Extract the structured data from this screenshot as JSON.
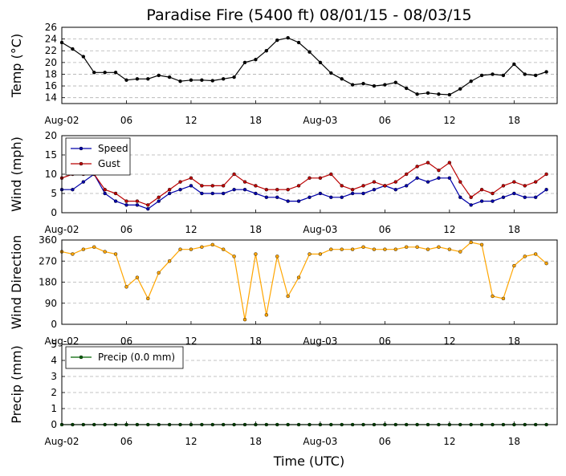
{
  "figure_title": "Paradise Fire (5400 ft) 08/01/15 - 08/03/15",
  "xlabel": "Time (UTC)",
  "x_tick_labels": [
    "Aug-02",
    "06",
    "12",
    "18",
    "Aug-03",
    "06",
    "12",
    "18"
  ],
  "colors": {
    "temp": "#000000",
    "speed": "#0000aa",
    "gust": "#bb0000",
    "direction": "#ffa500",
    "precip": "#006400",
    "grid": "#b0b0b0"
  },
  "chart_data": [
    {
      "type": "line",
      "panel": "temperature",
      "ylabel": "Temp (°C)",
      "ylim": [
        13,
        26
      ],
      "yticks": [
        14,
        16,
        18,
        20,
        22,
        24,
        26
      ],
      "x_hours": [
        0,
        1,
        2,
        3,
        4,
        5,
        6,
        7,
        8,
        9,
        10,
        11,
        12,
        13,
        14,
        15,
        16,
        17,
        18,
        19,
        20,
        21,
        22,
        23,
        24,
        25,
        26,
        27,
        28,
        29,
        30,
        31,
        32,
        33,
        34,
        35,
        36,
        37,
        38,
        39,
        40,
        41,
        42,
        43,
        44,
        45
      ],
      "series": [
        {
          "values": [
            23.4,
            22.3,
            21.0,
            18.3,
            18.3,
            18.3,
            17.0,
            17.2,
            17.2,
            17.8,
            17.5,
            16.8,
            17.0,
            17.0,
            16.9,
            17.2,
            17.5,
            20.0,
            20.5,
            22.0,
            23.8,
            24.2,
            23.4,
            21.8,
            20.0,
            18.2,
            17.2,
            16.2,
            16.4,
            16.0,
            16.2,
            16.6,
            15.6,
            14.6,
            14.8,
            14.6,
            14.5,
            15.5,
            16.8,
            17.8,
            18.0,
            17.8,
            19.7,
            18.0,
            17.8,
            18.4
          ]
        }
      ]
    },
    {
      "type": "line",
      "panel": "wind",
      "ylabel": "Wind (mph)",
      "ylim": [
        0,
        20
      ],
      "yticks": [
        0,
        5,
        10,
        15,
        20
      ],
      "legend_loc": "upper-left",
      "x_hours": [
        0,
        1,
        2,
        3,
        4,
        5,
        6,
        7,
        8,
        9,
        10,
        11,
        12,
        13,
        14,
        15,
        16,
        17,
        18,
        19,
        20,
        21,
        22,
        23,
        24,
        25,
        26,
        27,
        28,
        29,
        30,
        31,
        32,
        33,
        34,
        35,
        36,
        37,
        38,
        39,
        40,
        41,
        42,
        43,
        44,
        45
      ],
      "series": [
        {
          "name": "Speed",
          "values": [
            6,
            6,
            8,
            10,
            5,
            3,
            2,
            2,
            1,
            3,
            5,
            6,
            7,
            5,
            5,
            5,
            6,
            6,
            5,
            4,
            4,
            3,
            3,
            4,
            5,
            4,
            4,
            5,
            5,
            6,
            7,
            6,
            7,
            9,
            8,
            9,
            9,
            4,
            2,
            3,
            3,
            4,
            5,
            4,
            4,
            6
          ]
        },
        {
          "name": "Gust",
          "values": [
            9,
            10,
            10,
            10,
            6,
            5,
            3,
            3,
            2,
            4,
            6,
            8,
            9,
            7,
            7,
            7,
            10,
            8,
            7,
            6,
            6,
            6,
            7,
            9,
            9,
            10,
            7,
            6,
            7,
            8,
            7,
            8,
            10,
            12,
            13,
            11,
            13,
            8,
            4,
            6,
            5,
            7,
            8,
            7,
            8,
            10
          ]
        }
      ]
    },
    {
      "type": "scatter",
      "panel": "direction",
      "ylabel": "Wind Direction",
      "ylim": [
        0,
        360
      ],
      "yticks": [
        0,
        90,
        180,
        270,
        360
      ],
      "x_hours": [
        0,
        1,
        2,
        3,
        4,
        5,
        6,
        7,
        8,
        9,
        10,
        11,
        12,
        13,
        14,
        15,
        16,
        17,
        18,
        19,
        20,
        21,
        22,
        23,
        24,
        25,
        26,
        27,
        28,
        29,
        30,
        31,
        32,
        33,
        34,
        35,
        36,
        37,
        38,
        39,
        40,
        41,
        42,
        43,
        44,
        45
      ],
      "series": [
        {
          "values": [
            310,
            300,
            320,
            330,
            310,
            300,
            160,
            200,
            110,
            220,
            270,
            320,
            320,
            330,
            340,
            320,
            290,
            20,
            300,
            40,
            290,
            120,
            200,
            300,
            300,
            320,
            320,
            320,
            330,
            320,
            320,
            320,
            330,
            330,
            320,
            330,
            320,
            310,
            350,
            340,
            120,
            110,
            250,
            290,
            300,
            260
          ]
        }
      ]
    },
    {
      "type": "line",
      "panel": "precip",
      "ylabel": "Precip (mm)",
      "ylim": [
        0,
        5
      ],
      "yticks": [
        0,
        1,
        2,
        3,
        4,
        5
      ],
      "legend_loc": "upper-left",
      "x_hours": [
        0,
        1,
        2,
        3,
        4,
        5,
        6,
        7,
        8,
        9,
        10,
        11,
        12,
        13,
        14,
        15,
        16,
        17,
        18,
        19,
        20,
        21,
        22,
        23,
        24,
        25,
        26,
        27,
        28,
        29,
        30,
        31,
        32,
        33,
        34,
        35,
        36,
        37,
        38,
        39,
        40,
        41,
        42,
        43,
        44,
        45
      ],
      "series": [
        {
          "name": "Precip (0.0 mm)",
          "values": [
            0,
            0,
            0,
            0,
            0,
            0,
            0,
            0,
            0,
            0,
            0,
            0,
            0,
            0,
            0,
            0,
            0,
            0,
            0,
            0,
            0,
            0,
            0,
            0,
            0,
            0,
            0,
            0,
            0,
            0,
            0,
            0,
            0,
            0,
            0,
            0,
            0,
            0,
            0,
            0,
            0,
            0,
            0,
            0,
            0,
            0
          ]
        }
      ]
    }
  ]
}
